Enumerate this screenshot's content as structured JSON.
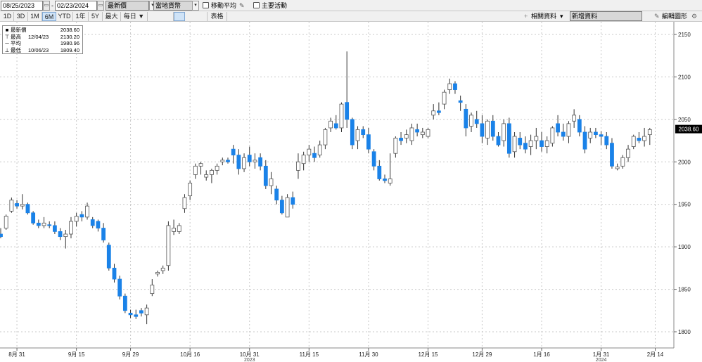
{
  "toolbar": {
    "start_date": "08/25/2023",
    "end_date": "02/23/2024",
    "field_select": "最新價",
    "currency_select": "當地貨幣",
    "moving_avg_label": "移動平均",
    "key_events_label": "主要活動",
    "ranges": [
      "1D",
      "3D",
      "1M",
      "6M",
      "YTD",
      "1年",
      "5Y",
      "最大",
      "每日 ▼"
    ],
    "active_range": "6M",
    "table_label": "表格",
    "related_label": "相關資料",
    "related_arrow": "▾",
    "new_data_label": "新增資料",
    "edit_chart_label": "編輯圖形"
  },
  "legend": [
    {
      "marker": "■",
      "name": "最新價",
      "date": "",
      "value": "2038.60"
    },
    {
      "marker": "⊤",
      "name": "最高",
      "date": "12/04/23",
      "value": "2130.20"
    },
    {
      "marker": "─",
      "name": "平均",
      "date": "",
      "value": "1980.96"
    },
    {
      "marker": "⊥",
      "name": "最低",
      "date": "10/06/23",
      "value": "1809.40"
    }
  ],
  "chart_data": {
    "type": "candlestick",
    "last_price_label": "2038.60",
    "last_price": 2038.6,
    "ylim": [
      1780,
      2160
    ],
    "y_ticks": [
      1800,
      1850,
      1900,
      1950,
      2000,
      2050,
      2100,
      2150
    ],
    "x_ticks": [
      {
        "label": "8月 31",
        "index": 3
      },
      {
        "label": "9月 15",
        "index": 14
      },
      {
        "label": "9月 29",
        "index": 24
      },
      {
        "label": "10月 16",
        "index": 35
      },
      {
        "label": "10月 31",
        "index": 46
      },
      {
        "label": "11月 15",
        "index": 57
      },
      {
        "label": "11月 30",
        "index": 68
      },
      {
        "label": "12月 15",
        "index": 79
      },
      {
        "label": "12月 29",
        "index": 89
      },
      {
        "label": "1月 16",
        "index": 100
      },
      {
        "label": "1月 31",
        "index": 111
      },
      {
        "label": "2月 14",
        "index": 121
      }
    ],
    "year_labels": [
      {
        "label": "2023",
        "index": 46
      },
      {
        "label": "2024",
        "index": 111
      }
    ],
    "grid": true,
    "colors": {
      "up": "#ffffff",
      "down": "#1a82e8",
      "wick": "#333333",
      "grid": "#c8c8c8"
    },
    "candles": [
      [
        1915,
        1922,
        1910,
        1912
      ],
      [
        1922,
        1938,
        1920,
        1936
      ],
      [
        1942,
        1958,
        1940,
        1955
      ],
      [
        1951,
        1955,
        1945,
        1948
      ],
      [
        1948,
        1962,
        1944,
        1950
      ],
      [
        1950,
        1952,
        1938,
        1940
      ],
      [
        1940,
        1942,
        1926,
        1928
      ],
      [
        1928,
        1932,
        1922,
        1925
      ],
      [
        1925,
        1935,
        1922,
        1928
      ],
      [
        1926,
        1930,
        1922,
        1925
      ],
      [
        1925,
        1930,
        1915,
        1918
      ],
      [
        1918,
        1922,
        1908,
        1912
      ],
      [
        1912,
        1920,
        1898,
        1915
      ],
      [
        1915,
        1935,
        1910,
        1930
      ],
      [
        1930,
        1940,
        1924,
        1936
      ],
      [
        1938,
        1942,
        1930,
        1935
      ],
      [
        1935,
        1952,
        1932,
        1948
      ],
      [
        1932,
        1935,
        1922,
        1925
      ],
      [
        1930,
        1932,
        1918,
        1922
      ],
      [
        1922,
        1928,
        1905,
        1908
      ],
      [
        1902,
        1905,
        1872,
        1875
      ],
      [
        1875,
        1880,
        1858,
        1862
      ],
      [
        1862,
        1866,
        1838,
        1842
      ],
      [
        1842,
        1845,
        1822,
        1825
      ],
      [
        1822,
        1826,
        1816,
        1820
      ],
      [
        1820,
        1826,
        1815,
        1818
      ],
      [
        1825,
        1828,
        1818,
        1822
      ],
      [
        1820,
        1832,
        1809,
        1828
      ],
      [
        1845,
        1862,
        1842,
        1855
      ],
      [
        1868,
        1872,
        1865,
        1870
      ],
      [
        1872,
        1878,
        1868,
        1875
      ],
      [
        1878,
        1930,
        1872,
        1925
      ],
      [
        1918,
        1932,
        1914,
        1922
      ],
      [
        1918,
        1928,
        1915,
        1925
      ],
      [
        1945,
        1962,
        1940,
        1958
      ],
      [
        1960,
        1978,
        1955,
        1975
      ],
      [
        1985,
        1998,
        1980,
        1995
      ],
      [
        1995,
        2000,
        1985,
        1998
      ],
      [
        1982,
        1990,
        1978,
        1985
      ],
      [
        1985,
        1992,
        1975,
        1990
      ],
      [
        1990,
        1998,
        1985,
        1995
      ],
      [
        2000,
        2005,
        1996,
        2002
      ],
      [
        2002,
        2005,
        1998,
        2000
      ],
      [
        2015,
        2020,
        1998,
        2008
      ],
      [
        2008,
        2015,
        1985,
        1992
      ],
      [
        1992,
        2010,
        1988,
        2005
      ],
      [
        2008,
        2018,
        1995,
        2000
      ],
      [
        2000,
        2010,
        1992,
        2002
      ],
      [
        2005,
        2010,
        1990,
        1995
      ],
      [
        1995,
        2002,
        1968,
        1972
      ],
      [
        1972,
        1988,
        1962,
        1980
      ],
      [
        1968,
        1972,
        1950,
        1955
      ],
      [
        1955,
        1960,
        1938,
        1940
      ],
      [
        1935,
        1962,
        1938,
        1958
      ],
      [
        1958,
        1965,
        1945,
        1950
      ],
      [
        1990,
        2010,
        1980,
        2000
      ],
      [
        1998,
        2012,
        1990,
        2008
      ],
      [
        2008,
        2020,
        2000,
        2015
      ],
      [
        2010,
        2018,
        2000,
        2005
      ],
      [
        2008,
        2025,
        2005,
        2020
      ],
      [
        2020,
        2040,
        2015,
        2038
      ],
      [
        2040,
        2052,
        2035,
        2048
      ],
      [
        2045,
        2055,
        2038,
        2040
      ],
      [
        2040,
        2070,
        2035,
        2068
      ],
      [
        2070,
        2130,
        2040,
        2050
      ],
      [
        2050,
        2052,
        2015,
        2020
      ],
      [
        2025,
        2042,
        2015,
        2038
      ],
      [
        2038,
        2042,
        2028,
        2032
      ],
      [
        2032,
        2040,
        2010,
        2015
      ],
      [
        2012,
        2015,
        1990,
        1995
      ],
      [
        1995,
        2002,
        1978,
        1980
      ],
      [
        1980,
        1985,
        1975,
        1978
      ],
      [
        1975,
        2010,
        1972,
        1980
      ],
      [
        2010,
        2030,
        2005,
        2028
      ],
      [
        2028,
        2035,
        2020,
        2025
      ],
      [
        2028,
        2038,
        2022,
        2032
      ],
      [
        2025,
        2045,
        2020,
        2040
      ],
      [
        2038,
        2045,
        2030,
        2035
      ],
      [
        2032,
        2040,
        2028,
        2035
      ],
      [
        2030,
        2040,
        2028,
        2038
      ],
      [
        2055,
        2068,
        2050,
        2060
      ],
      [
        2060,
        2070,
        2055,
        2058
      ],
      [
        2068,
        2085,
        2062,
        2082
      ],
      [
        2085,
        2098,
        2080,
        2092
      ],
      [
        2092,
        2095,
        2080,
        2085
      ],
      [
        2072,
        2078,
        2060,
        2070
      ],
      [
        2062,
        2068,
        2030,
        2040
      ],
      [
        2042,
        2058,
        2035,
        2055
      ],
      [
        2050,
        2060,
        2040,
        2045
      ],
      [
        2045,
        2055,
        2022,
        2030
      ],
      [
        2028,
        2050,
        2020,
        2048
      ],
      [
        2048,
        2055,
        2025,
        2030
      ],
      [
        2030,
        2035,
        2018,
        2020
      ],
      [
        2025,
        2050,
        2018,
        2045
      ],
      [
        2045,
        2052,
        2005,
        2010
      ],
      [
        2012,
        2035,
        2005,
        2030
      ],
      [
        2028,
        2035,
        2015,
        2020
      ],
      [
        2022,
        2030,
        2010,
        2015
      ],
      [
        2018,
        2032,
        2008,
        2025
      ],
      [
        2025,
        2040,
        2015,
        2030
      ],
      [
        2025,
        2035,
        2012,
        2018
      ],
      [
        2018,
        2030,
        2010,
        2025
      ],
      [
        2022,
        2042,
        2018,
        2040
      ],
      [
        2045,
        2055,
        2030,
        2035
      ],
      [
        2035,
        2045,
        2025,
        2030
      ],
      [
        2030,
        2048,
        2022,
        2045
      ],
      [
        2048,
        2062,
        2040,
        2055
      ],
      [
        2050,
        2055,
        2030,
        2035
      ],
      [
        2035,
        2042,
        2010,
        2015
      ],
      [
        2028,
        2040,
        2022,
        2035
      ],
      [
        2035,
        2040,
        2028,
        2032
      ],
      [
        2032,
        2036,
        2020,
        2030
      ],
      [
        2030,
        2035,
        2015,
        2020
      ],
      [
        2022,
        2028,
        1992,
        1995
      ],
      [
        1992,
        1998,
        1990,
        1994
      ],
      [
        1995,
        2008,
        1992,
        2005
      ],
      [
        2005,
        2020,
        2000,
        2015
      ],
      [
        2018,
        2032,
        2015,
        2030
      ],
      [
        2028,
        2035,
        2022,
        2025
      ],
      [
        2025,
        2040,
        2018,
        2030
      ],
      [
        2032,
        2040,
        2020,
        2038
      ]
    ]
  }
}
